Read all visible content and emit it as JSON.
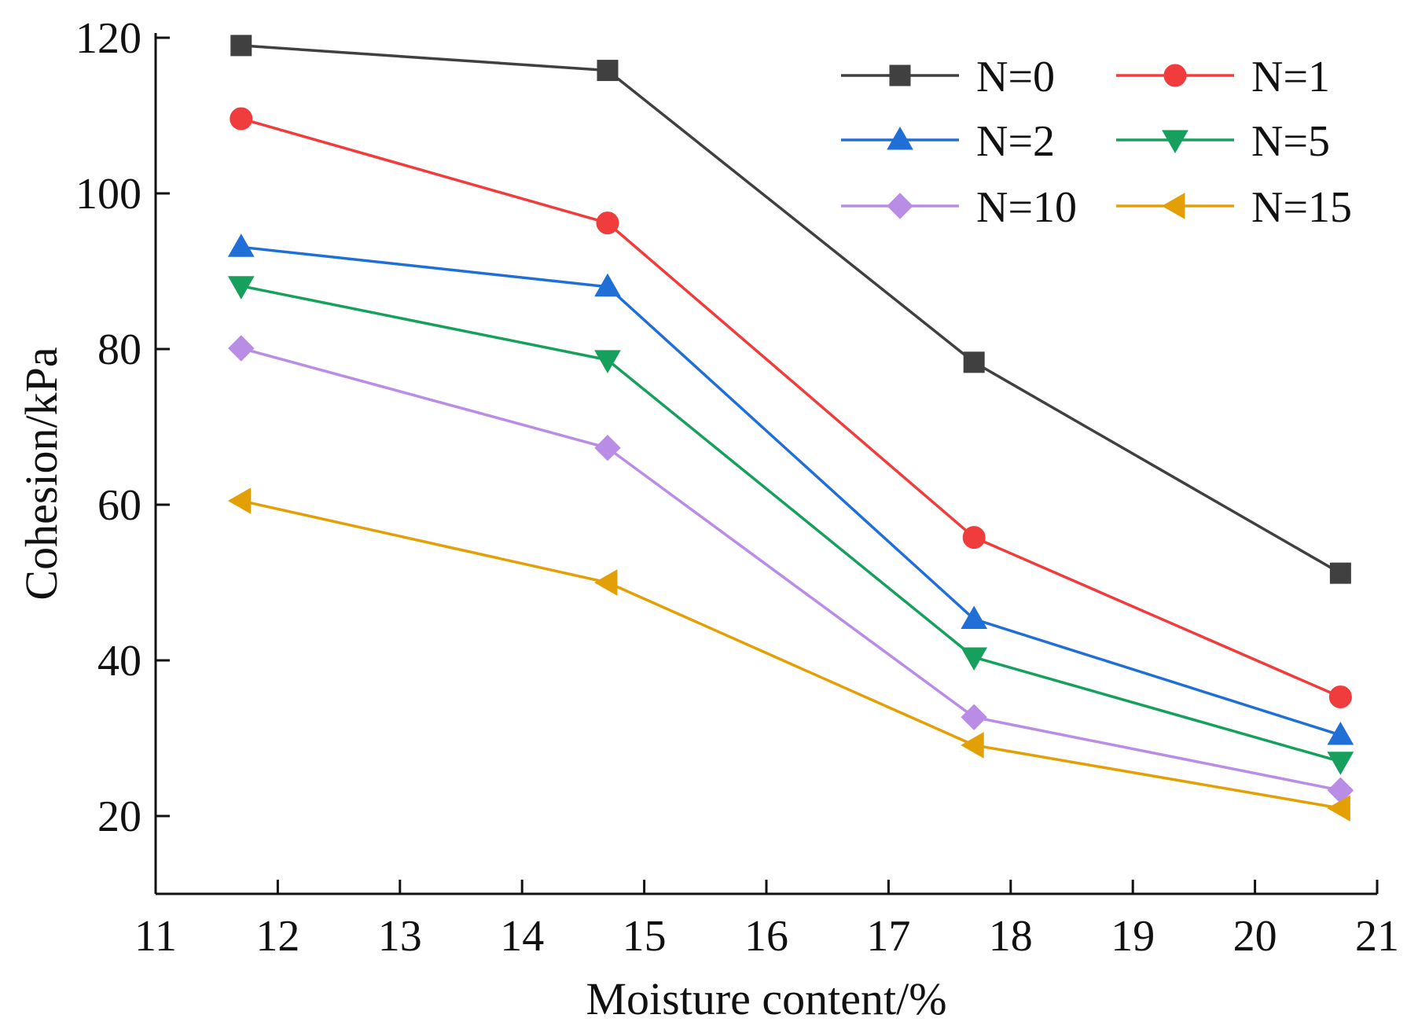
{
  "chart_data": {
    "type": "line",
    "title": "",
    "xlabel": "Moisture content/%",
    "ylabel": "Cohesion/kPa",
    "xlim": [
      11,
      21
    ],
    "ylim": [
      10,
      120
    ],
    "xticks": [
      11,
      12,
      13,
      14,
      15,
      16,
      17,
      18,
      19,
      20,
      21
    ],
    "yticks": [
      20,
      40,
      60,
      80,
      100,
      120
    ],
    "x": [
      11.7,
      14.7,
      17.7,
      20.7
    ],
    "legend_position": "top-right",
    "grid": false,
    "series": [
      {
        "name": "N=0",
        "marker": "square",
        "color": "#404040",
        "values": [
          119,
          115.8,
          78.3,
          51.2
        ]
      },
      {
        "name": "N=1",
        "marker": "circle",
        "color": "#f03c3c",
        "values": [
          109.6,
          96.2,
          55.8,
          35.3
        ]
      },
      {
        "name": "N=2",
        "marker": "triangle-up",
        "color": "#1f6fd6",
        "values": [
          93.1,
          88,
          45.3,
          30.4
        ]
      },
      {
        "name": "N=5",
        "marker": "triangle-down",
        "color": "#17a05d",
        "values": [
          88.1,
          78.6,
          40.4,
          27
        ]
      },
      {
        "name": "N=10",
        "marker": "diamond",
        "color": "#b98ce6",
        "values": [
          80.1,
          67.3,
          32.7,
          23.3
        ]
      },
      {
        "name": "N=15",
        "marker": "triangle-left",
        "color": "#e3a005",
        "values": [
          60.5,
          50,
          29.1,
          21
        ]
      }
    ]
  }
}
